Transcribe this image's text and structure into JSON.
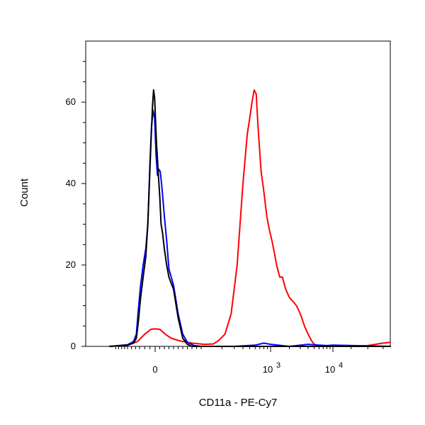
{
  "chart_data": {
    "type": "line",
    "title": "",
    "xlabel": "CD11a - PE-Cy7",
    "ylabel": "Count",
    "x_scale": "biexponential",
    "x_ticks": [
      {
        "value": 0,
        "label": "0"
      },
      {
        "value": 1000,
        "label": "10",
        "sup": "3"
      },
      {
        "value": 10000,
        "label": "10",
        "sup": "4"
      }
    ],
    "y_ticks": [
      0,
      20,
      40,
      60
    ],
    "ylim": [
      0,
      75
    ],
    "grid": false,
    "legend": "none",
    "series": [
      {
        "color": "#ff0000",
        "points": [
          [
            -120,
            0
          ],
          [
            -60,
            0.3
          ],
          [
            -35,
            1.2
          ],
          [
            -20,
            3
          ],
          [
            -8,
            4.2
          ],
          [
            0,
            4.3
          ],
          [
            10,
            4.2
          ],
          [
            22,
            3
          ],
          [
            35,
            2
          ],
          [
            55,
            1.3
          ],
          [
            80,
            0.8
          ],
          [
            110,
            0.5
          ],
          [
            150,
            0.6
          ],
          [
            180,
            1.5
          ],
          [
            220,
            3
          ],
          [
            270,
            8
          ],
          [
            330,
            20
          ],
          [
            400,
            40
          ],
          [
            460,
            52
          ],
          [
            500,
            56
          ],
          [
            540,
            60
          ],
          [
            580,
            63
          ],
          [
            620,
            62
          ],
          [
            660,
            54
          ],
          [
            730,
            43
          ],
          [
            800,
            38
          ],
          [
            880,
            32
          ],
          [
            950,
            29
          ],
          [
            1050,
            26
          ],
          [
            1150,
            23
          ],
          [
            1250,
            20
          ],
          [
            1400,
            17
          ],
          [
            1550,
            17
          ],
          [
            1750,
            14
          ],
          [
            2000,
            12
          ],
          [
            2300,
            11
          ],
          [
            2600,
            10
          ],
          [
            3000,
            8
          ],
          [
            3500,
            5
          ],
          [
            4000,
            3
          ],
          [
            4500,
            1.5
          ],
          [
            5000,
            0.5
          ],
          [
            6000,
            0.2
          ],
          [
            8000,
            0
          ],
          [
            10000,
            0
          ],
          [
            12000,
            0.2
          ],
          [
            13000,
            0.8
          ],
          [
            13500,
            1
          ]
        ]
      },
      {
        "color": "#0000ff",
        "points": [
          [
            -120,
            0
          ],
          [
            -60,
            0.4
          ],
          [
            -45,
            1.2
          ],
          [
            -38,
            3
          ],
          [
            -33,
            9
          ],
          [
            -28,
            15
          ],
          [
            -23,
            20
          ],
          [
            -18,
            24
          ],
          [
            -14,
            30
          ],
          [
            -10,
            45
          ],
          [
            -7,
            54
          ],
          [
            -4,
            58
          ],
          [
            -1,
            56
          ],
          [
            2,
            47
          ],
          [
            5,
            42
          ],
          [
            8,
            43.5
          ],
          [
            11,
            43
          ],
          [
            14,
            40
          ],
          [
            17,
            36
          ],
          [
            20,
            32
          ],
          [
            25,
            26
          ],
          [
            30,
            19
          ],
          [
            40,
            15
          ],
          [
            50,
            8
          ],
          [
            60,
            3
          ],
          [
            70,
            1
          ],
          [
            85,
            0.2
          ],
          [
            100,
            0
          ],
          [
            300,
            0
          ],
          [
            600,
            0.3
          ],
          [
            800,
            0.8
          ],
          [
            1000,
            0.5
          ],
          [
            2000,
            0
          ],
          [
            4000,
            0.5
          ],
          [
            6000,
            0.3
          ],
          [
            8000,
            0.2
          ],
          [
            10000,
            0.3
          ],
          [
            13500,
            0
          ]
        ]
      },
      {
        "color": "#000000",
        "points": [
          [
            -120,
            0
          ],
          [
            -60,
            0.3
          ],
          [
            -45,
            0.8
          ],
          [
            -38,
            2
          ],
          [
            -33,
            6
          ],
          [
            -28,
            12
          ],
          [
            -23,
            17
          ],
          [
            -18,
            22
          ],
          [
            -14,
            30
          ],
          [
            -11,
            40
          ],
          [
            -8,
            50
          ],
          [
            -5,
            59
          ],
          [
            -3,
            63
          ],
          [
            -1,
            61
          ],
          [
            1,
            55
          ],
          [
            3,
            50
          ],
          [
            5,
            46
          ],
          [
            7,
            42
          ],
          [
            10,
            37
          ],
          [
            13,
            30
          ],
          [
            16,
            28
          ],
          [
            20,
            24
          ],
          [
            25,
            20
          ],
          [
            30,
            17
          ],
          [
            40,
            14
          ],
          [
            50,
            7
          ],
          [
            60,
            2
          ],
          [
            70,
            0.5
          ],
          [
            80,
            0
          ],
          [
            13500,
            0
          ]
        ]
      }
    ]
  }
}
